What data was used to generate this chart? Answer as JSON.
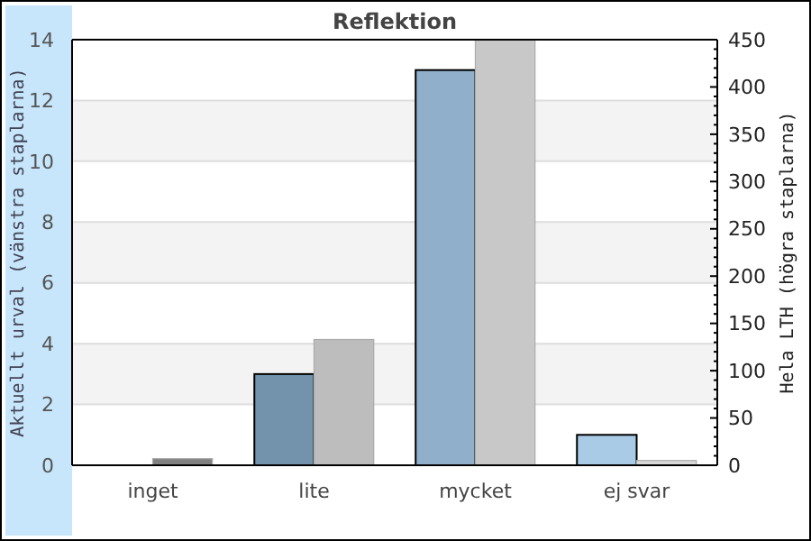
{
  "chart_data": {
    "type": "bar",
    "title": "Reflektion",
    "ylabel": "Aktuellt urval (vänstra staplarna)",
    "y2label": "Hela LTH (högra staplarna)",
    "categories": [
      "inget",
      "lite",
      "mycket",
      "ej svar"
    ],
    "series": [
      {
        "colors": [
          "#5f7f9b",
          "#7393ad",
          "#8fafca",
          "#a9cbe6"
        ],
        "values": [
          0,
          3,
          13,
          1
        ]
      },
      {
        "axis": "y2",
        "colors": [
          "#808080",
          "#bdbdbd",
          "#c8c8c8",
          "#d9d9d9"
        ],
        "values": [
          7,
          133,
          450,
          5
        ]
      }
    ],
    "ylim": [
      0,
      14
    ],
    "yticks": [
      0,
      2,
      4,
      6,
      8,
      10,
      12,
      14
    ],
    "y2lim": [
      0,
      450
    ],
    "y2ticks": [
      0,
      50,
      100,
      150,
      200,
      250,
      300,
      350,
      400,
      450
    ],
    "grid": "y"
  }
}
